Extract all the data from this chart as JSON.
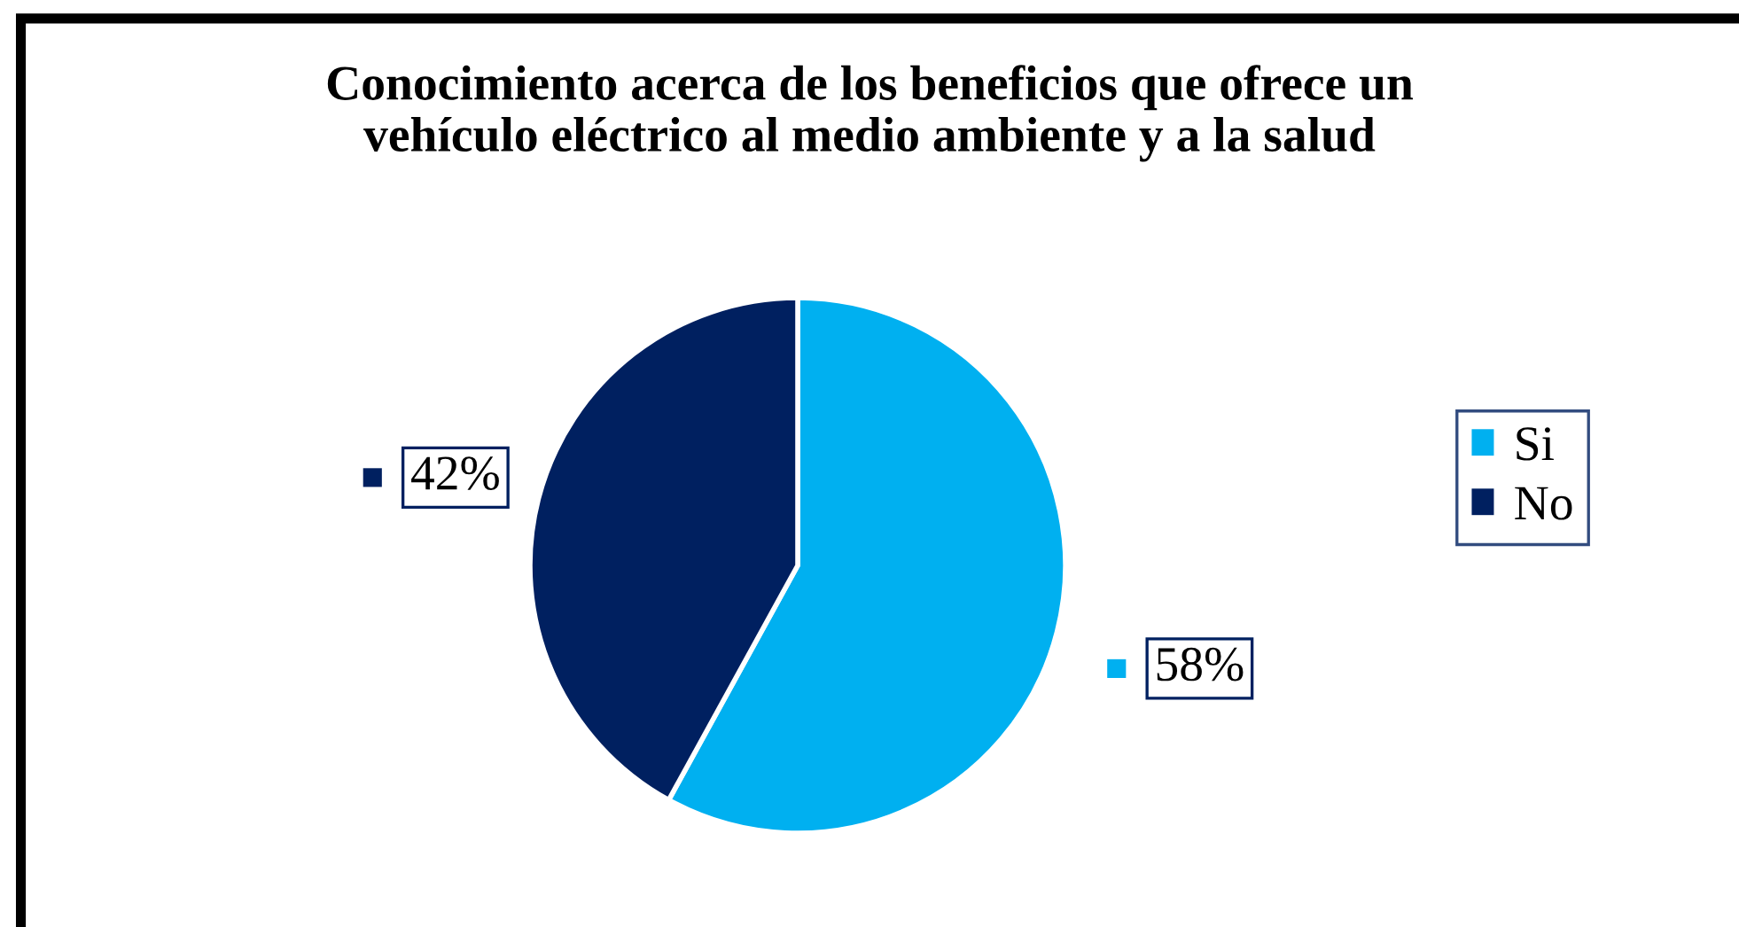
{
  "chart_data": {
    "type": "pie",
    "title": "Conocimiento acerca de los beneficios que ofrece un\nvehículo eléctrico al medio ambiente y a la salud",
    "categories": [
      "Si",
      "No"
    ],
    "values": [
      58,
      42
    ],
    "colors": [
      "#00b0f0",
      "#002060"
    ],
    "value_labels": [
      "58%",
      "42%"
    ],
    "legend": "right"
  }
}
